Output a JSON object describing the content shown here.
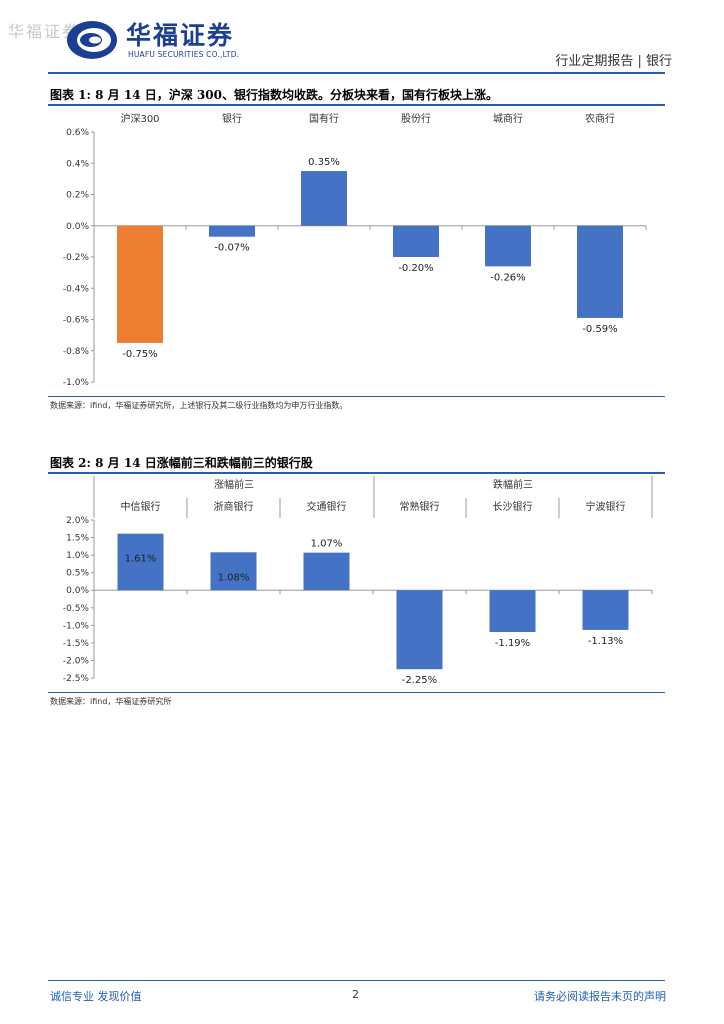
{
  "header": {
    "watermark": "华福证券",
    "logo_cn": "华福证券",
    "logo_en": "HUAFU SECURITIES CO.,LTD.",
    "report_type": "行业定期报告 | 银行"
  },
  "figure1": {
    "title": "图表 1:  8 月 14 日，沪深 300、银行指数均收跌。分板块来看，国有行板块上涨。",
    "source": "数据来源：ifind，华福证券研究所，上述银行及其二级行业指数均为申万行业指数。"
  },
  "figure2": {
    "title": "图表 2:  8 月 14 日涨幅前三和跌幅前三的银行股",
    "group_up": "涨幅前三",
    "group_down": "跌幅前三",
    "source": "数据来源：ifind，华福证券研究所"
  },
  "chart_data": [
    {
      "type": "bar",
      "categories": [
        "沪深300",
        "银行",
        "国有行",
        "股份行",
        "城商行",
        "农商行"
      ],
      "values": [
        -0.75,
        -0.07,
        0.35,
        -0.2,
        -0.26,
        -0.59
      ],
      "labels": [
        "-0.75%",
        "-0.07%",
        "0.35%",
        "-0.20%",
        "-0.26%",
        "-0.59%"
      ],
      "colors": [
        "#ed7d31",
        "#4472c4",
        "#4472c4",
        "#4472c4",
        "#4472c4",
        "#4472c4"
      ],
      "ylim": [
        -1.0,
        0.6
      ],
      "yticks": [
        0.6,
        0.4,
        0.2,
        0.0,
        -0.2,
        -0.4,
        -0.6,
        -0.8,
        -1.0
      ],
      "ytick_labels": [
        "0.6%",
        "0.4%",
        "0.2%",
        "0.0%",
        "-0.2%",
        "-0.4%",
        "-0.6%",
        "-0.8%",
        "-1.0%"
      ],
      "title": "",
      "xlabel": "",
      "ylabel": ""
    },
    {
      "type": "bar",
      "categories": [
        "中信银行",
        "浙商银行",
        "交通银行",
        "常熟银行",
        "长沙银行",
        "宁波银行"
      ],
      "values": [
        1.61,
        1.08,
        1.07,
        -2.25,
        -1.19,
        -1.13
      ],
      "labels": [
        "1.61%",
        "1.08%",
        "1.07%",
        "-2.25%",
        "-1.19%",
        "-1.13%"
      ],
      "colors": [
        "#4472c4",
        "#4472c4",
        "#4472c4",
        "#4472c4",
        "#4472c4",
        "#4472c4"
      ],
      "ylim": [
        -2.5,
        2.0
      ],
      "yticks": [
        2.0,
        1.5,
        1.0,
        0.5,
        0.0,
        -0.5,
        -1.0,
        -1.5,
        -2.0,
        -2.5
      ],
      "ytick_labels": [
        "2.0%",
        "1.5%",
        "1.0%",
        "0.5%",
        "0.0%",
        "-0.5%",
        "-1.0%",
        "-1.5%",
        "-2.0%",
        "-2.5%"
      ],
      "title": "",
      "xlabel": "",
      "ylabel": ""
    }
  ],
  "footer": {
    "left": "诚信专业  发现价值",
    "page": "2",
    "right": "请务必阅读报告末页的声明"
  }
}
